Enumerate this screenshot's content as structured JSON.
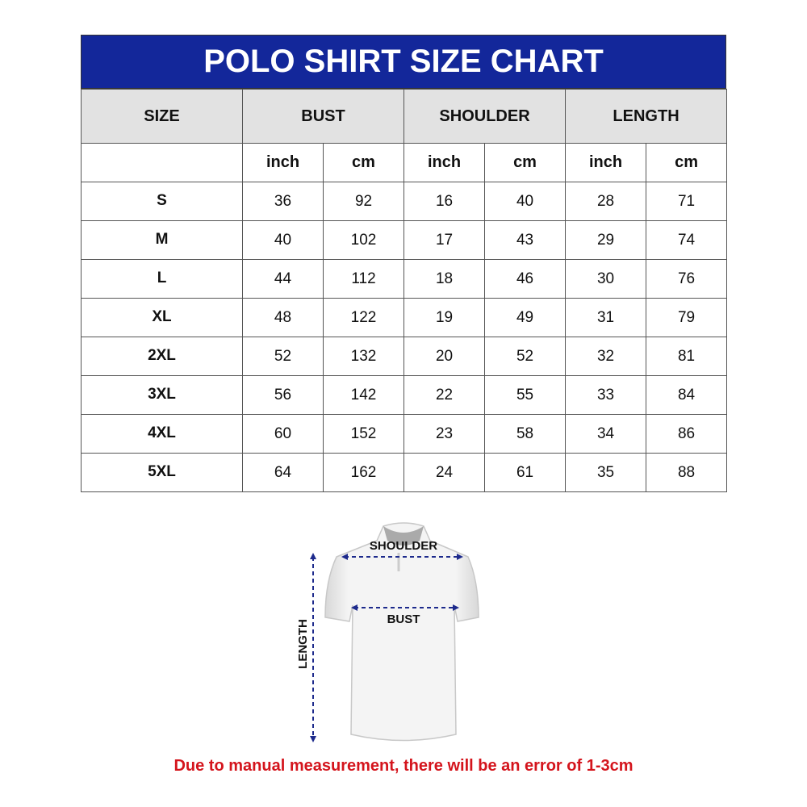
{
  "title": "POLO SHIRT SIZE CHART",
  "headers": [
    "SIZE",
    "BUST",
    "SHOULDER",
    "LENGTH"
  ],
  "units": [
    "inch",
    "cm",
    "inch",
    "cm",
    "inch",
    "cm"
  ],
  "rows": [
    [
      "S",
      "36",
      "92",
      "16",
      "40",
      "28",
      "71"
    ],
    [
      "M",
      "40",
      "102",
      "17",
      "43",
      "29",
      "74"
    ],
    [
      "L",
      "44",
      "112",
      "18",
      "46",
      "30",
      "76"
    ],
    [
      "XL",
      "48",
      "122",
      "19",
      "49",
      "31",
      "79"
    ],
    [
      "2XL",
      "52",
      "132",
      "20",
      "52",
      "32",
      "81"
    ],
    [
      "3XL",
      "56",
      "142",
      "22",
      "55",
      "33",
      "84"
    ],
    [
      "4XL",
      "60",
      "152",
      "23",
      "58",
      "34",
      "86"
    ],
    [
      "5XL",
      "64",
      "162",
      "24",
      "61",
      "35",
      "88"
    ]
  ],
  "diagram": {
    "shoulder": "SHOULDER",
    "bust": "BUST",
    "length": "LENGTH"
  },
  "note": "Due to manual measurement, there will be an error of 1-3cm",
  "colors": {
    "header": "#13279a",
    "arrows": "#1d2a8c",
    "note": "#d4141c"
  }
}
